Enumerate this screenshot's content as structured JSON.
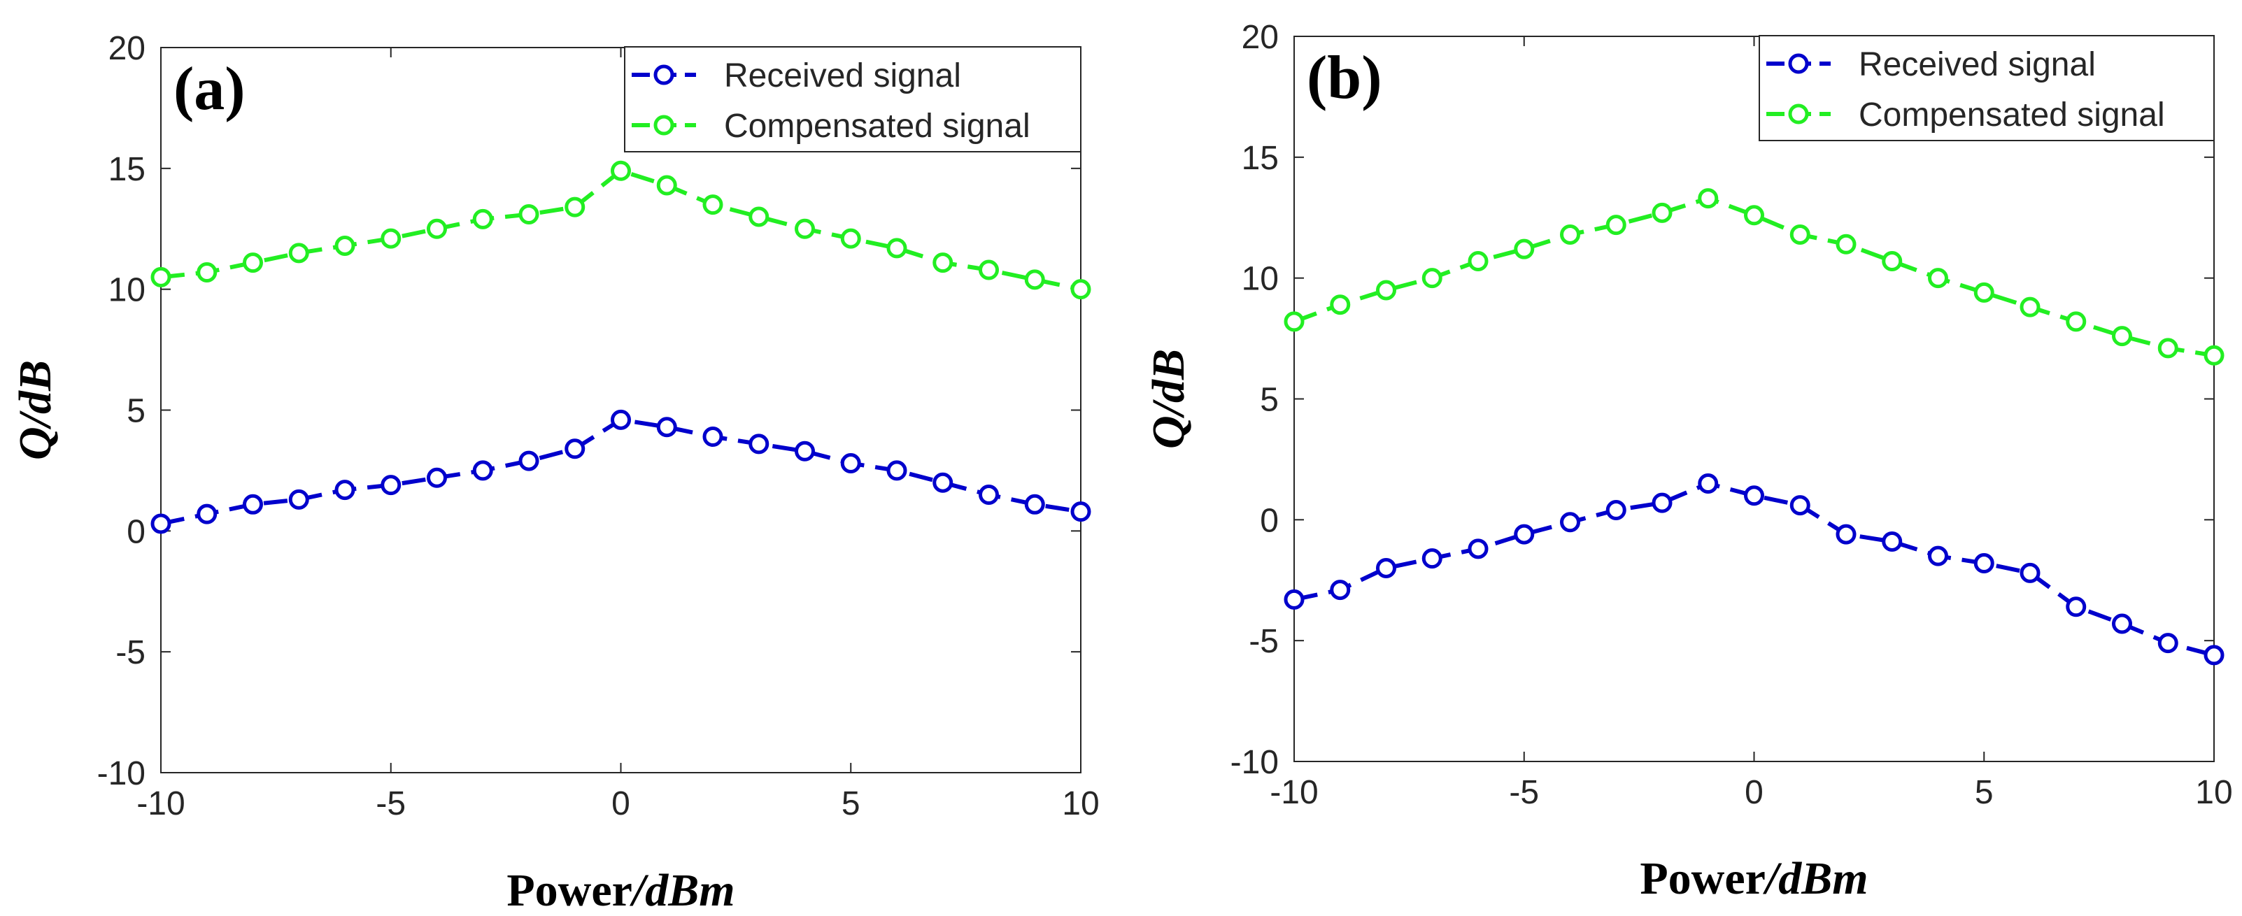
{
  "chart_data": [
    {
      "type": "line",
      "panel_label": "(a)",
      "xlabel": {
        "prefix": "Power",
        "slash": "/",
        "unit": "dBm"
      },
      "ylabel": {
        "prefix": "Q",
        "slash": "/",
        "unit": "dB"
      },
      "xlim": [
        -10,
        10
      ],
      "ylim": [
        -10,
        20
      ],
      "xticks": [
        -10,
        -5,
        0,
        5,
        10
      ],
      "yticks": [
        -10,
        -5,
        0,
        5,
        10,
        15,
        20
      ],
      "x": [
        -10,
        -9,
        -8,
        -7,
        -6,
        -5,
        -4,
        -3,
        -2,
        -1,
        0,
        1,
        2,
        3,
        4,
        5,
        6,
        7,
        8,
        9,
        10
      ],
      "series": [
        {
          "name": "Received signal",
          "color": "#0000CC",
          "values": [
            0.3,
            0.7,
            1.1,
            1.3,
            1.7,
            1.9,
            2.2,
            2.5,
            2.9,
            3.4,
            4.6,
            4.3,
            3.9,
            3.6,
            3.3,
            2.8,
            2.5,
            2.0,
            1.5,
            1.1,
            0.8
          ]
        },
        {
          "name": "Compensated signal",
          "color": "#22EE22",
          "values": [
            10.5,
            10.7,
            11.1,
            11.5,
            11.8,
            12.1,
            12.5,
            12.9,
            13.1,
            13.4,
            14.9,
            14.3,
            13.5,
            13.0,
            12.5,
            12.1,
            11.7,
            11.1,
            10.8,
            10.4,
            10.0
          ]
        }
      ],
      "legend": {
        "position": "top-right",
        "entries": [
          "Received signal",
          "Compensated signal"
        ]
      }
    },
    {
      "type": "line",
      "panel_label": "(b)",
      "xlabel": {
        "prefix": "Power",
        "slash": "/",
        "unit": "dBm"
      },
      "ylabel": {
        "prefix": "Q",
        "slash": "/",
        "unit": "dB"
      },
      "xlim": [
        -10,
        10
      ],
      "ylim": [
        -10,
        20
      ],
      "xticks": [
        -10,
        -5,
        0,
        5,
        10
      ],
      "yticks": [
        -10,
        -5,
        0,
        5,
        10,
        15,
        20
      ],
      "x": [
        -10,
        -9,
        -8,
        -7,
        -6,
        -5,
        -4,
        -3,
        -2,
        -1,
        0,
        1,
        2,
        3,
        4,
        5,
        6,
        7,
        8,
        9,
        10
      ],
      "series": [
        {
          "name": "Received signal",
          "color": "#0000CC",
          "values": [
            -3.3,
            -2.9,
            -2.0,
            -1.6,
            -1.2,
            -0.6,
            -0.1,
            0.4,
            0.7,
            1.5,
            1.0,
            0.6,
            -0.6,
            -0.9,
            -1.5,
            -1.8,
            -2.2,
            -3.6,
            -4.3,
            -5.1,
            -5.6
          ]
        },
        {
          "name": "Compensated signal",
          "color": "#22EE22",
          "values": [
            8.2,
            8.9,
            9.5,
            10.0,
            10.7,
            11.2,
            11.8,
            12.2,
            12.7,
            13.3,
            12.6,
            11.8,
            11.4,
            10.7,
            10.0,
            9.4,
            8.8,
            8.2,
            7.6,
            7.1,
            6.8
          ]
        }
      ],
      "legend": {
        "position": "top-right",
        "entries": [
          "Received signal",
          "Compensated signal"
        ]
      }
    }
  ]
}
